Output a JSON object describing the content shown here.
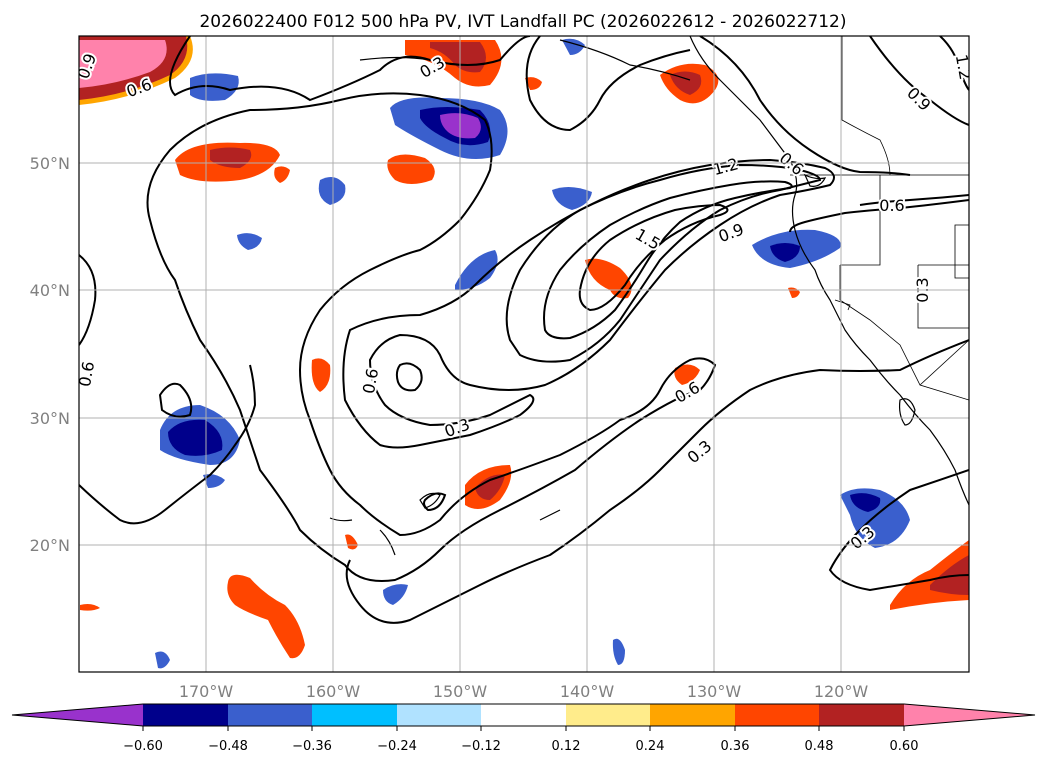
{
  "title": "2026022400 F012 500 hPa PV, IVT Landfall PC (2026022612 - 2026022712)",
  "lat_labels": [
    "50°N",
    "40°N",
    "30°N",
    "20°N"
  ],
  "lon_labels": [
    "170°W",
    "160°W",
    "150°W",
    "140°W",
    "130°W",
    "120°W"
  ],
  "colorbar": {
    "tick_labels": [
      "−0.60",
      "−0.48",
      "−0.36",
      "−0.24",
      "−0.12",
      "0.12",
      "0.24",
      "0.36",
      "0.48",
      "0.60"
    ],
    "colors": [
      "#9932cc",
      "#00008b",
      "#3a5fcd",
      "#00bfff",
      "#b0e2ff",
      "#ffffff",
      "#ffec8b",
      "#ffa500",
      "#ff4500",
      "#b22222",
      "#ff82ab"
    ]
  },
  "contour_labels": [
    "0.9",
    "0.6",
    "0.3",
    "1.2",
    "1.5",
    "0.9",
    "0.6",
    "0.6",
    "0.6",
    "0.3",
    "0.6",
    "0.3",
    "0.3",
    "0.9",
    "0.3",
    "1.2",
    "0.6"
  ],
  "colors": {
    "neg_light": "#b0e2ff",
    "neg_cyan": "#00bfff",
    "neg_mid": "#3a5fcd",
    "neg_dark": "#00008b",
    "neg_purple": "#9932cc",
    "pos_yellow": "#ffec8b",
    "pos_orange": "#ffa500",
    "pos_red": "#ff4500",
    "pos_dark_red": "#b22222",
    "pos_pink": "#ff82ab"
  }
}
